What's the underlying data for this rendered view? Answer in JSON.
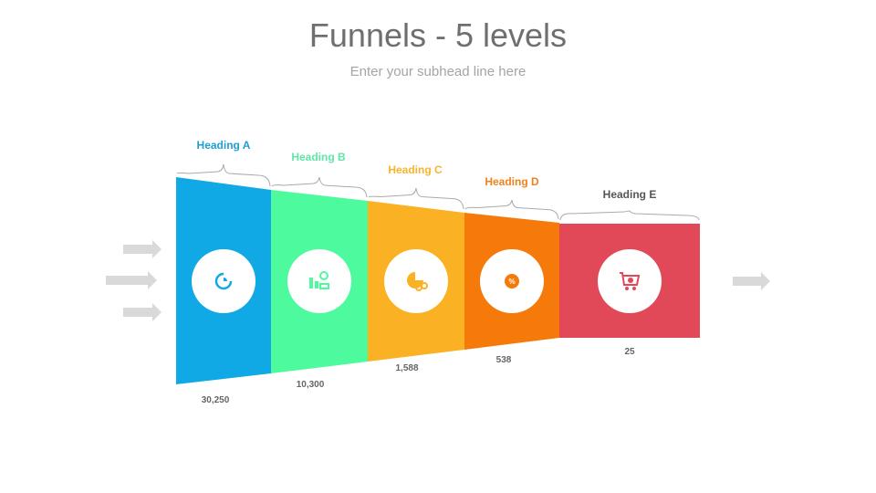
{
  "title": "Funnels - 5 levels",
  "subtitle": "Enter your subhead line here",
  "stages": [
    {
      "heading": "Heading A",
      "value": "30,250",
      "color": "#10a9e6",
      "heading_color": "#1e9fd4",
      "icon": "pie-chart-refresh-icon"
    },
    {
      "heading": "Heading B",
      "value": "10,300",
      "color": "#4dfa9e",
      "heading_color": "#5fe6a8",
      "icon": "bar-chart-search-icon"
    },
    {
      "heading": "Heading C",
      "value": "1,588",
      "color": "#fab224",
      "heading_color": "#f5b52e",
      "icon": "pie-chart-gears-icon"
    },
    {
      "heading": "Heading D",
      "value": "538",
      "color": "#f67a09",
      "heading_color": "#f0821a",
      "icon": "percent-badge-icon"
    },
    {
      "heading": "Heading E",
      "value": "25",
      "color": "#e14858",
      "heading_color": "#555555",
      "icon": "shopping-cart-icon"
    }
  ],
  "arrow_color": "#d9d9d9"
}
